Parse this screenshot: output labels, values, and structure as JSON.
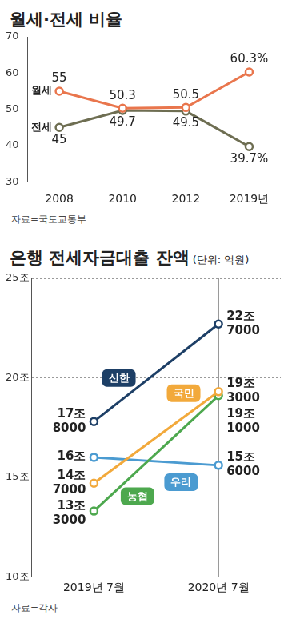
{
  "chart_data": [
    {
      "type": "line",
      "title": "월세·전세 비율",
      "categories": [
        "2008",
        "2010",
        "2012",
        "2019년"
      ],
      "series": [
        {
          "name": "월세",
          "color": "#e9764d",
          "values": [
            55,
            50.3,
            50.5,
            60.3
          ],
          "value_labels": [
            "55",
            "50.3",
            "50.5",
            "60.3%"
          ]
        },
        {
          "name": "전세",
          "color": "#6e6e52",
          "values": [
            45,
            49.7,
            49.5,
            39.7
          ],
          "value_labels": [
            "45",
            "49.7",
            "49.5",
            "39.7%"
          ]
        }
      ],
      "ylim": [
        30,
        70
      ],
      "yticks": [
        30,
        40,
        50,
        60,
        70
      ],
      "grid": false,
      "data_labels": true,
      "marker": "circle",
      "source": "자료=국토교통부"
    },
    {
      "type": "line",
      "title": "은행 전세자금대출 잔액",
      "subtitle": "(단위: 억원)",
      "categories": [
        "2019년 7월",
        "2020년 7월"
      ],
      "series": [
        {
          "name": "신한",
          "color": "#1d3f66",
          "values": [
            17.8,
            22.7
          ],
          "value_labels": [
            "17조\n8000",
            "22조\n7000"
          ]
        },
        {
          "name": "국민",
          "color": "#f2a93b",
          "values": [
            14.7,
            19.3
          ],
          "value_labels": [
            "14조\n7000",
            "19조\n3000"
          ]
        },
        {
          "name": "농협",
          "color": "#4da84e",
          "values": [
            13.3,
            19.1
          ],
          "value_labels": [
            "13조\n3000",
            "19조\n1000"
          ]
        },
        {
          "name": "우리",
          "color": "#4b9bd1",
          "values": [
            16,
            15.6
          ],
          "value_labels": [
            "16조",
            "15조\n6000"
          ]
        }
      ],
      "ylim": [
        10,
        25
      ],
      "yticks": [
        {
          "value": 10,
          "label": "10조"
        },
        {
          "value": 15,
          "label": "15조"
        },
        {
          "value": 20,
          "label": "20조"
        },
        {
          "value": 25,
          "label": "25조"
        }
      ],
      "grid": true,
      "data_labels": true,
      "marker": "circle",
      "source": "자료=각사"
    }
  ]
}
